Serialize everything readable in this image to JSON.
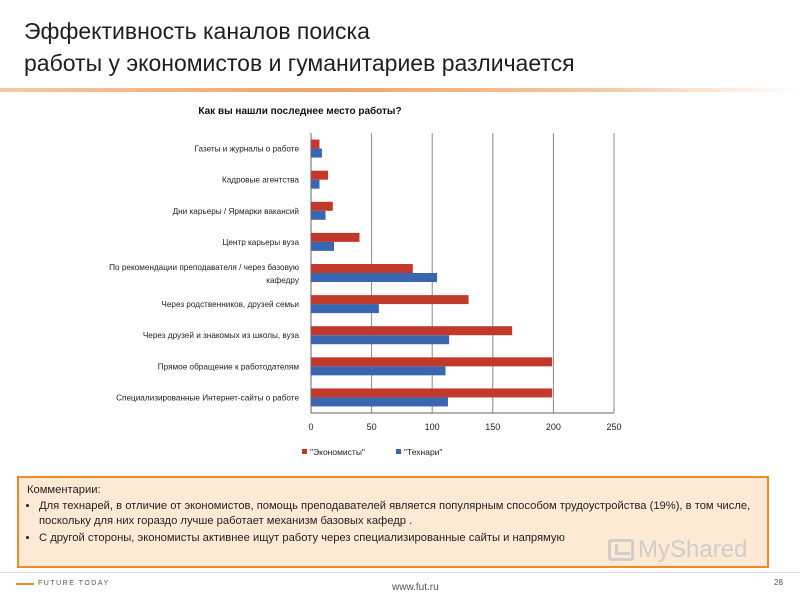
{
  "slide": {
    "title_line1": "Эффективность каналов поиска",
    "title_line2": "работы у экономистов и гуманитариев различается",
    "page_number": "28",
    "footer_url": "www.fut.ru",
    "logo_text": "FUTURE TODAY",
    "watermark_text": "MyShared",
    "accent_color": "#f08a24"
  },
  "comments": {
    "title": "Комментарии:",
    "items": [
      "Для технарей, в отличие от экономистов, помощь преподавателей является популярным способом трудоустройства (19%), в том числе, поскольку для них гораздо лучше работает механизм базовых кафедр .",
      "С другой стороны, экономисты активнее ищут работу через специализированные сайты и напрямую"
    ]
  },
  "chart_data": {
    "type": "bar",
    "orientation": "horizontal",
    "title": "Как вы нашли последнее место работы?",
    "categories": [
      "Газеты и журналы о работе",
      "Кадровые агентства",
      "Дни карьеры / Ярмарки вакансий",
      "Центр карьеры вуза",
      "По рекомендации преподавателя / через базовую кафедру",
      "Через родственников, друзей семьи",
      "Через друзей и знакомых из школы, вуза",
      "Прямое обращение к работодателям",
      "Специализированные Интернет-сайты о работе"
    ],
    "category_label_lines": [
      [
        "Газеты и журналы о работе"
      ],
      [
        "Кадровые агентства"
      ],
      [
        "Дни карьеры / Ярмарки вакансий"
      ],
      [
        "Центр карьеры вуза"
      ],
      [
        "По рекомендации преподавателя / через базовую",
        "кафедру"
      ],
      [
        "Через родственников, друзей семьи"
      ],
      [
        "Через друзей и знакомых из школы, вуза"
      ],
      [
        "Прямое обращение к работодателям"
      ],
      [
        "Специализированные Интернет-сайты о работе"
      ]
    ],
    "series": [
      {
        "name": "\"Экономисты\"",
        "color": "#c0392b",
        "values": [
          7,
          14,
          18,
          40,
          84,
          130,
          166,
          199,
          199
        ]
      },
      {
        "name": "\"Технари\"",
        "color": "#3a66b0",
        "values": [
          9,
          7,
          12,
          19,
          104,
          56,
          114,
          111,
          113
        ]
      }
    ],
    "xlim": [
      0,
      250
    ],
    "xticks": [
      0,
      50,
      100,
      150,
      200,
      250
    ],
    "grid": "vertical",
    "legend_position": "bottom"
  }
}
